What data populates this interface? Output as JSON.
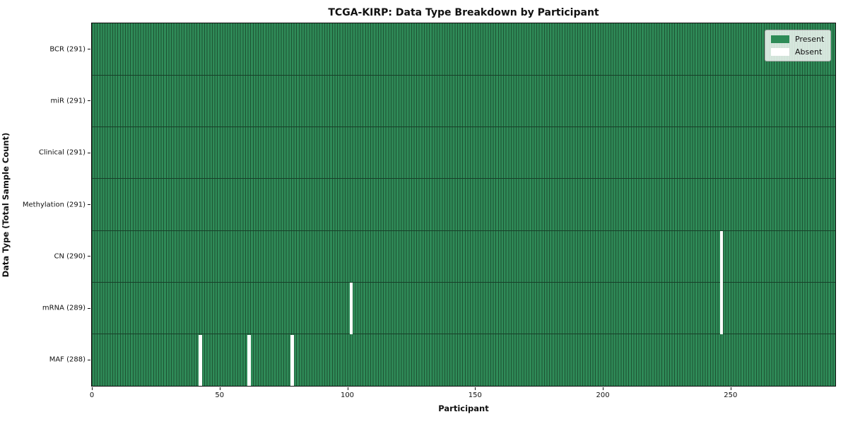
{
  "chart_data": {
    "type": "heatmap",
    "title": "TCGA-KIRP: Data Type Breakdown by Participant",
    "xlabel": "Participant",
    "ylabel": "Data Type (Total Sample Count)",
    "x_range": [
      0,
      291
    ],
    "x_ticks": [
      0,
      50,
      100,
      150,
      200,
      250
    ],
    "n_participants": 291,
    "grid": false,
    "categories": [
      "BCR",
      "miR",
      "Clinical",
      "Methylation",
      "CN",
      "mRNA",
      "MAF"
    ],
    "rows": [
      {
        "label": "BCR (291)",
        "data_type": "BCR",
        "total_samples": 291,
        "absent_participants": []
      },
      {
        "label": "miR (291)",
        "data_type": "miR",
        "total_samples": 291,
        "absent_participants": []
      },
      {
        "label": "Clinical (291)",
        "data_type": "Clinical",
        "total_samples": 291,
        "absent_participants": []
      },
      {
        "label": "Methylation (291)",
        "data_type": "Methylation",
        "total_samples": 291,
        "absent_participants": []
      },
      {
        "label": "CN (290)",
        "data_type": "CN",
        "total_samples": 290,
        "absent_participants": [
          246
        ]
      },
      {
        "label": "mRNA (289)",
        "data_type": "mRNA",
        "total_samples": 289,
        "absent_participants": [
          101,
          246
        ]
      },
      {
        "label": "MAF (288)",
        "data_type": "MAF",
        "total_samples": 288,
        "absent_participants": [
          42,
          61,
          78
        ]
      }
    ],
    "legend": {
      "position": "upper right",
      "entries": [
        {
          "label": "Present",
          "color": "#2e8b57"
        },
        {
          "label": "Absent",
          "color": "#ffffff"
        }
      ]
    },
    "colors": {
      "present": "#2e8b57",
      "absent": "#ffffff",
      "bar_edge": "#1d5232",
      "row_boundary": "#173f28",
      "background": "#ffffff"
    }
  }
}
